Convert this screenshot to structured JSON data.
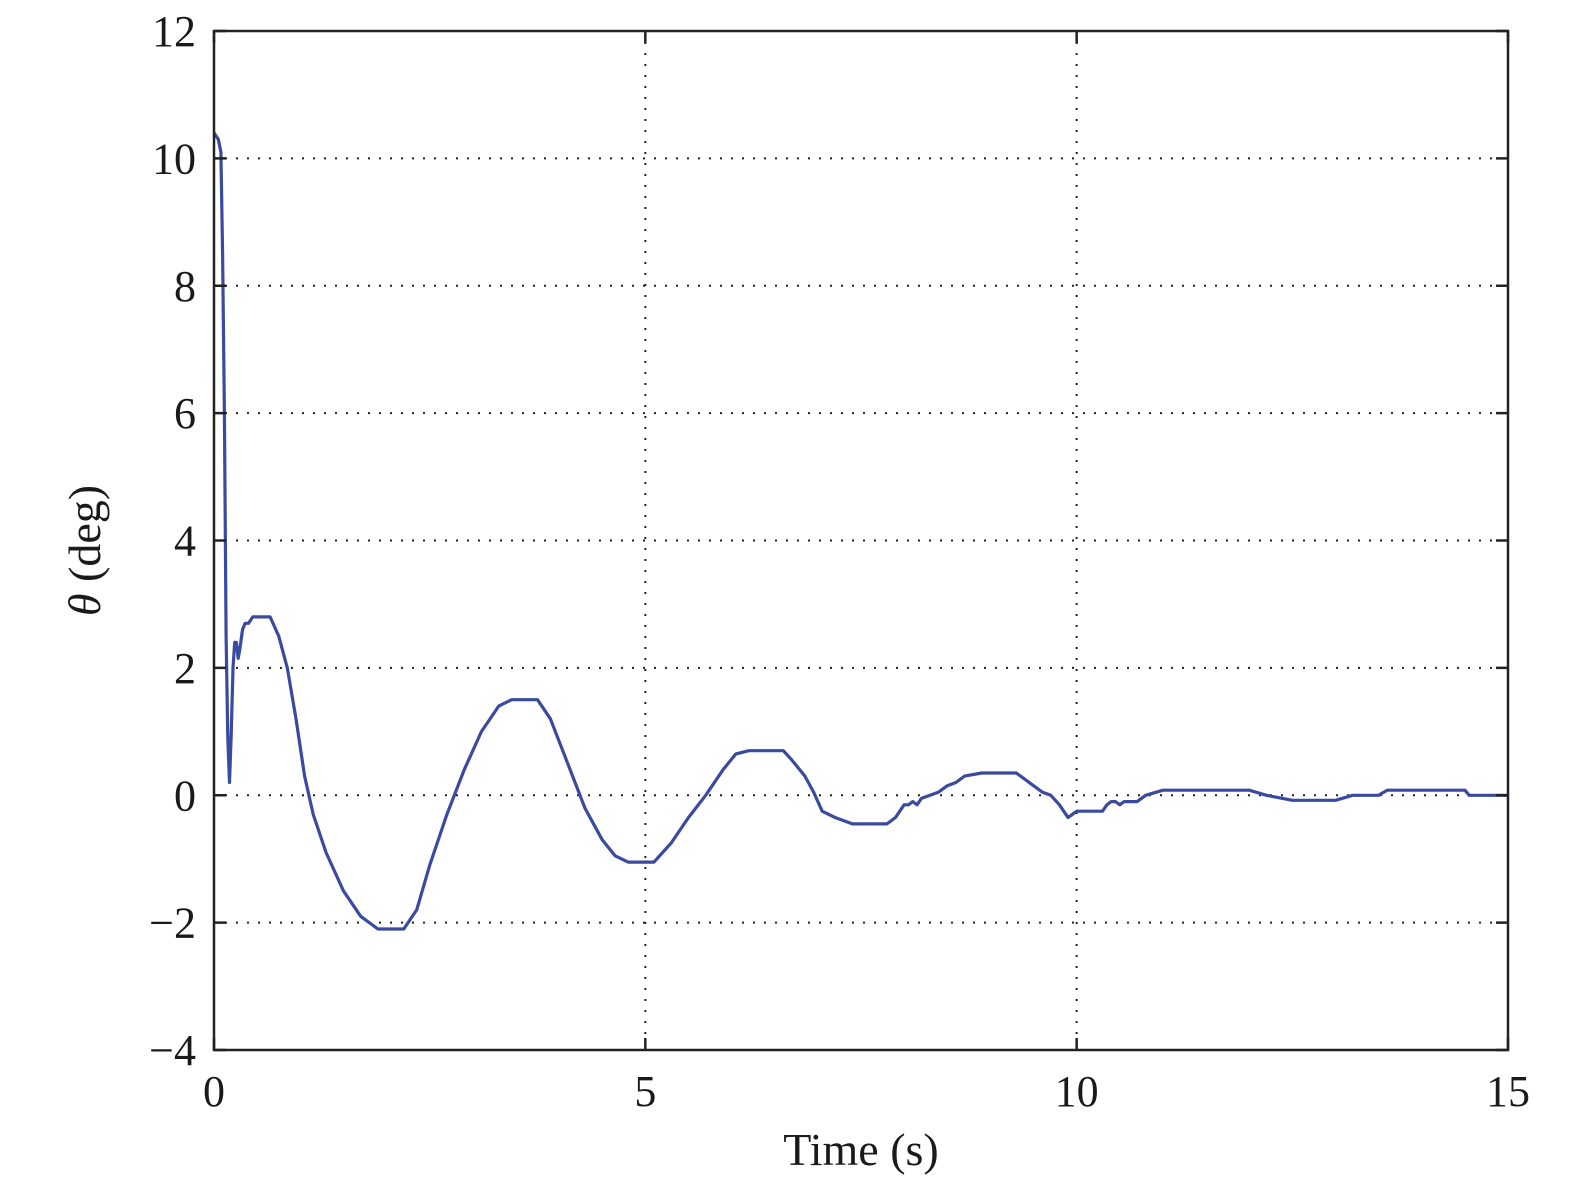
{
  "chart_data": {
    "type": "line",
    "xlabel": "Time (s)",
    "ylabel_symbol": "θ",
    "ylabel_unit": " (deg)",
    "xlim": [
      0,
      15
    ],
    "ylim": [
      -4,
      12
    ],
    "xticks": [
      0,
      5,
      10,
      15
    ],
    "yticks": [
      -4,
      -2,
      0,
      2,
      4,
      6,
      8,
      10,
      12
    ],
    "xtick_labels": [
      "0",
      "5",
      "10",
      "15"
    ],
    "ytick_labels": [
      "−4",
      "−2",
      "0",
      "2",
      "4",
      "6",
      "8",
      "10",
      "12"
    ],
    "grid": true,
    "series": [
      {
        "color": "#3a4aa0",
        "x": [
          0,
          0.05,
          0.08,
          0.1,
          0.12,
          0.14,
          0.16,
          0.18,
          0.2,
          0.22,
          0.24,
          0.26,
          0.28,
          0.3,
          0.33,
          0.36,
          0.4,
          0.45,
          0.5,
          0.55,
          0.6,
          0.65,
          0.75,
          0.85,
          0.95,
          1.05,
          1.15,
          1.3,
          1.5,
          1.7,
          1.9,
          2.05,
          2.2,
          2.35,
          2.5,
          2.7,
          2.9,
          3.1,
          3.3,
          3.45,
          3.6,
          3.75,
          3.9,
          4.1,
          4.3,
          4.5,
          4.65,
          4.8,
          4.95,
          5.1,
          5.3,
          5.5,
          5.7,
          5.9,
          6.05,
          6.2,
          6.35,
          6.5,
          6.6,
          6.7,
          6.85,
          6.95,
          7.05,
          7.2,
          7.4,
          7.6,
          7.8,
          7.9,
          8.0,
          8.05,
          8.1,
          8.15,
          8.2,
          8.3,
          8.4,
          8.5,
          8.6,
          8.7,
          8.9,
          9.1,
          9.3,
          9.4,
          9.5,
          9.6,
          9.7,
          9.8,
          9.85,
          9.9,
          9.95,
          10.0,
          10.3,
          10.35,
          10.4,
          10.45,
          10.5,
          10.55,
          10.6,
          10.7,
          10.8,
          11.0,
          11.5,
          12.0,
          12.2,
          12.5,
          13.0,
          13.2,
          13.5,
          13.6,
          14.0,
          14.5,
          14.55,
          15.0
        ],
        "y": [
          10.4,
          10.3,
          10.1,
          8.5,
          6.0,
          2.5,
          0.9,
          0.2,
          1.0,
          2.0,
          2.4,
          2.4,
          2.15,
          2.3,
          2.6,
          2.7,
          2.7,
          2.8,
          2.8,
          2.8,
          2.8,
          2.8,
          2.5,
          2.0,
          1.2,
          0.3,
          -0.3,
          -0.9,
          -1.5,
          -1.9,
          -2.1,
          -2.1,
          -2.1,
          -1.8,
          -1.1,
          -0.3,
          0.4,
          1.0,
          1.4,
          1.5,
          1.5,
          1.5,
          1.2,
          0.5,
          -0.2,
          -0.7,
          -0.95,
          -1.05,
          -1.05,
          -1.05,
          -0.75,
          -0.35,
          0.0,
          0.4,
          0.65,
          0.7,
          0.7,
          0.7,
          0.7,
          0.55,
          0.3,
          0.05,
          -0.25,
          -0.35,
          -0.45,
          -0.45,
          -0.45,
          -0.35,
          -0.15,
          -0.15,
          -0.1,
          -0.15,
          -0.05,
          0.0,
          0.05,
          0.15,
          0.2,
          0.3,
          0.35,
          0.35,
          0.35,
          0.25,
          0.15,
          0.05,
          0.0,
          -0.15,
          -0.25,
          -0.35,
          -0.3,
          -0.25,
          -0.25,
          -0.15,
          -0.1,
          -0.1,
          -0.15,
          -0.1,
          -0.1,
          -0.1,
          0.0,
          0.08,
          0.08,
          0.08,
          0.0,
          -0.08,
          -0.08,
          0.0,
          0.0,
          0.08,
          0.08,
          0.08,
          0.0,
          0.0
        ]
      }
    ]
  }
}
